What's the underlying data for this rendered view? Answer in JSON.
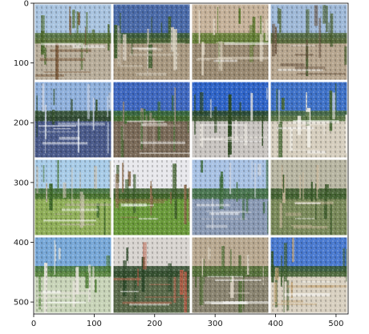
{
  "figure": {
    "x_ticks": [
      "0",
      "100",
      "200",
      "300",
      "400",
      "500"
    ],
    "y_ticks": [
      "0",
      "100",
      "200",
      "300",
      "400",
      "500"
    ],
    "x_range": [
      0,
      520
    ],
    "y_range": [
      0,
      520
    ],
    "grid_rows": 4,
    "grid_cols": 4,
    "tiles": [
      {
        "sky": "#a9c4e0",
        "ground": "#b8ad9a",
        "veg": "#4f6b2f",
        "accent": "#7a5a3a"
      },
      {
        "sky": "#4a6aa8",
        "ground": "#a89880",
        "veg": "#3c5a2a",
        "accent": "#d8d0c0"
      },
      {
        "sky": "#c6b29a",
        "ground": "#9a8a72",
        "veg": "#5c7a2e",
        "accent": "#e0d6c4"
      },
      {
        "sky": "#9fb9d8",
        "ground": "#b7a68f",
        "veg": "#4a6030",
        "accent": "#6a5440"
      },
      {
        "sky": "#8fb0dc",
        "ground": "#4a5a8a",
        "veg": "#2f4a26",
        "accent": "#c8d0e0"
      },
      {
        "sky": "#3f68c0",
        "ground": "#7a6a58",
        "veg": "#3a6a2a",
        "accent": "#a09080"
      },
      {
        "sky": "#2f64c8",
        "ground": "#c8c4c0",
        "veg": "#2d4a22",
        "accent": "#e8e4dc"
      },
      {
        "sky": "#3f72c8",
        "ground": "#d6cebe",
        "veg": "#4a6a36",
        "accent": "#f0ece4"
      },
      {
        "sky": "#a8cce8",
        "ground": "#8fae58",
        "veg": "#3e6a2a",
        "accent": "#c9c0b0"
      },
      {
        "sky": "#e8e8ec",
        "ground": "#6a9a3a",
        "veg": "#3a5a28",
        "accent": "#8a6a4a"
      },
      {
        "sky": "#a8c2e4",
        "ground": "#8a9ab4",
        "veg": "#3c6a3a",
        "accent": "#d0d4dc"
      },
      {
        "sky": "#b8b6a2",
        "ground": "#7a8a5a",
        "veg": "#3a5a2a",
        "accent": "#c8b69a"
      },
      {
        "sky": "#78a8d8",
        "ground": "#c8d4b8",
        "veg": "#4a7a30",
        "accent": "#e8e4dc"
      },
      {
        "sky": "#d8d4d0",
        "ground": "#5a6a4a",
        "veg": "#2e4a2a",
        "accent": "#b8604a"
      },
      {
        "sky": "#b8a890",
        "ground": "#8a8470",
        "veg": "#4a6a30",
        "accent": "#d8d0c0"
      },
      {
        "sky": "#4a7ad0",
        "ground": "#d8d0c0",
        "veg": "#3a5a2a",
        "accent": "#c8a87a"
      }
    ]
  }
}
